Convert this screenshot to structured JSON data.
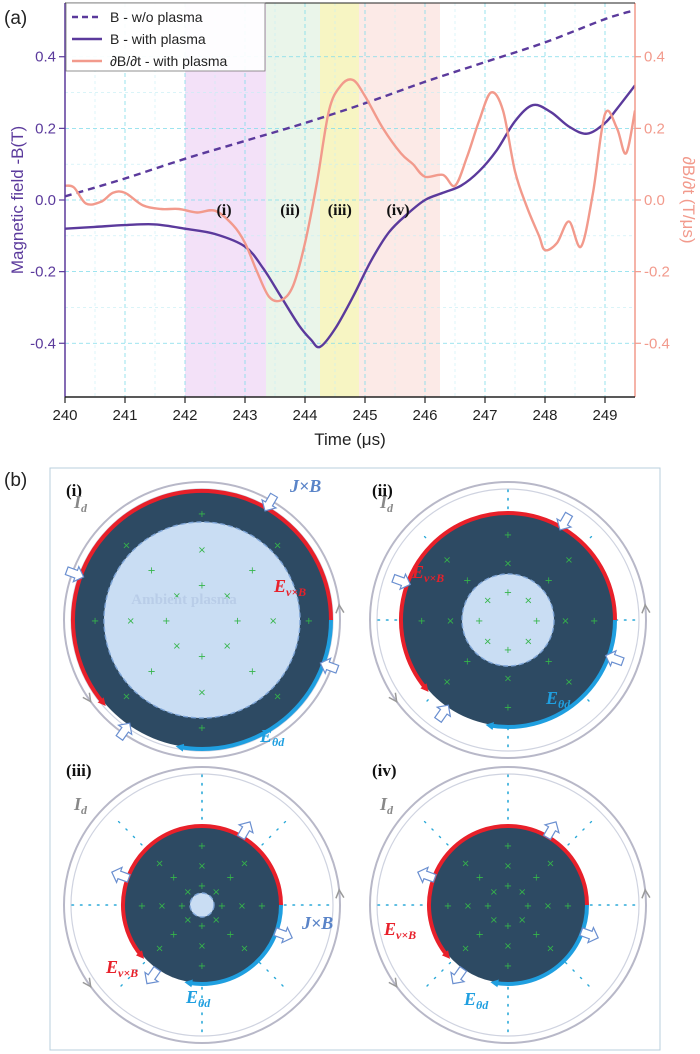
{
  "figure": {
    "panel_a_label": "(a)",
    "panel_b_label": "(b)",
    "phase_labels": [
      "(i)",
      "(ii)",
      "(iii)",
      "(iv)"
    ],
    "colors": {
      "purple": "#5b3a9c",
      "salmon": "#f29a8c",
      "red": "#e8202a",
      "blue": "#1f9fe0",
      "plasma_dark": "#2d4a63",
      "plasma_light": "#c9ddf3",
      "shade_i": "#f1dcf7",
      "shade_ii": "#e6f3e6",
      "shade_iii": "#f6f3b8",
      "shade_iv": "#fbe6e3"
    }
  },
  "chart_data": {
    "type": "line",
    "xlabel": "Time (μs)",
    "ylabel_left": "Magnetic field -B(T)",
    "ylabel_right": "∂B/∂t (T/μs)",
    "xlim": [
      240,
      249.5
    ],
    "ylim": [
      -0.55,
      0.55
    ],
    "x_ticks": [
      240,
      241,
      242,
      243,
      244,
      245,
      246,
      247,
      248,
      249
    ],
    "y_ticks_left": [
      0.4,
      0.2,
      0.0,
      -0.2,
      -0.4
    ],
    "y_ticks_right": [
      0.4,
      0.2,
      0.0,
      -0.2,
      -0.4
    ],
    "y_tick_labels_left": [
      "0.4",
      "0.2",
      "0.0",
      "-0.2",
      "-0.4"
    ],
    "y_tick_labels_right": [
      "0.4",
      "0.2",
      "0.0",
      "-0.2",
      "-0.4"
    ],
    "x_tick_labels": [
      "240",
      "241",
      "242",
      "243",
      "244",
      "245",
      "246",
      "247",
      "248",
      "249"
    ],
    "shaded_regions": [
      {
        "label": "(i)",
        "x0": 242.0,
        "x1": 243.35
      },
      {
        "label": "(ii)",
        "x0": 243.35,
        "x1": 244.25
      },
      {
        "label": "(iii)",
        "x0": 244.25,
        "x1": 244.9
      },
      {
        "label": "(iv)",
        "x0": 244.9,
        "x1": 246.25
      }
    ],
    "legend": [
      "B -  w/o plasma",
      "B -  with plasma",
      "∂B/∂t - with plasma"
    ],
    "series": [
      {
        "name": "B -  w/o plasma",
        "style": "dashed",
        "x": [
          240,
          241,
          242,
          243,
          244,
          245,
          246,
          247,
          248,
          249,
          249.5
        ],
        "y": [
          0.01,
          0.06,
          0.115,
          0.165,
          0.215,
          0.27,
          0.33,
          0.385,
          0.44,
          0.505,
          0.53
        ]
      },
      {
        "name": "B -  with plasma",
        "style": "solid",
        "x": [
          240,
          240.5,
          241,
          241.5,
          242,
          242.5,
          243,
          243.3,
          243.6,
          243.9,
          244.1,
          244.25,
          244.5,
          244.8,
          245.1,
          245.4,
          245.7,
          246.0,
          246.3,
          246.6,
          246.9,
          247.2,
          247.5,
          247.8,
          248.1,
          248.4,
          248.7,
          249.0,
          249.2,
          249.5
        ],
        "y": [
          -0.08,
          -0.075,
          -0.07,
          -0.068,
          -0.08,
          -0.095,
          -0.13,
          -0.19,
          -0.27,
          -0.35,
          -0.39,
          -0.41,
          -0.36,
          -0.27,
          -0.17,
          -0.09,
          -0.04,
          0.0,
          0.02,
          0.04,
          0.08,
          0.14,
          0.22,
          0.265,
          0.245,
          0.205,
          0.185,
          0.215,
          0.255,
          0.32
        ]
      },
      {
        "name": "∂B/∂t - with plasma",
        "style": "solid",
        "x": [
          240,
          240.15,
          240.35,
          240.6,
          240.8,
          241.0,
          241.3,
          241.6,
          241.9,
          242.2,
          242.5,
          242.8,
          243.0,
          243.2,
          243.4,
          243.6,
          243.8,
          244.0,
          244.2,
          244.4,
          244.6,
          244.8,
          245.0,
          245.3,
          245.6,
          245.8,
          246.0,
          246.3,
          246.5,
          246.7,
          246.9,
          247.1,
          247.3,
          247.5,
          247.7,
          247.9,
          248.0,
          248.2,
          248.4,
          248.6,
          248.8,
          249.0,
          249.2,
          249.35,
          249.5
        ],
        "y": [
          0.04,
          0.035,
          -0.01,
          -0.005,
          0.02,
          0.02,
          -0.015,
          -0.025,
          -0.025,
          -0.035,
          -0.03,
          -0.07,
          -0.12,
          -0.2,
          -0.27,
          -0.28,
          -0.24,
          -0.12,
          0.05,
          0.25,
          0.32,
          0.335,
          0.29,
          0.2,
          0.13,
          0.1,
          0.065,
          0.07,
          0.04,
          0.12,
          0.22,
          0.3,
          0.25,
          0.08,
          -0.02,
          -0.1,
          -0.14,
          -0.12,
          -0.06,
          -0.13,
          0.02,
          0.24,
          0.2,
          0.13,
          0.25
        ]
      }
    ]
  },
  "panel_b": {
    "subpanels": [
      {
        "label": "(i)",
        "current": "I",
        "current_sub": "d",
        "e_vxb": "E",
        "e_vxb_sub": "v×B",
        "e_theta": "E",
        "e_theta_sub": "θd",
        "jxb": "J×B",
        "ambient": "Ambient plasma"
      },
      {
        "label": "(ii)",
        "current": "I",
        "current_sub": "d",
        "e_vxb": "E",
        "e_vxb_sub": "v×B",
        "e_theta": "E",
        "e_theta_sub": "θd"
      },
      {
        "label": "(iii)",
        "current": "I",
        "current_sub": "d",
        "e_vxb": "E",
        "e_vxb_sub": "v×B",
        "e_theta": "E",
        "e_theta_sub": "θd",
        "jxb": "J×B"
      },
      {
        "label": "(iv)",
        "current": "I",
        "current_sub": "d",
        "e_vxb": "E",
        "e_vxb_sub": "v×B",
        "e_theta": "E",
        "e_theta_sub": "θd"
      }
    ]
  }
}
